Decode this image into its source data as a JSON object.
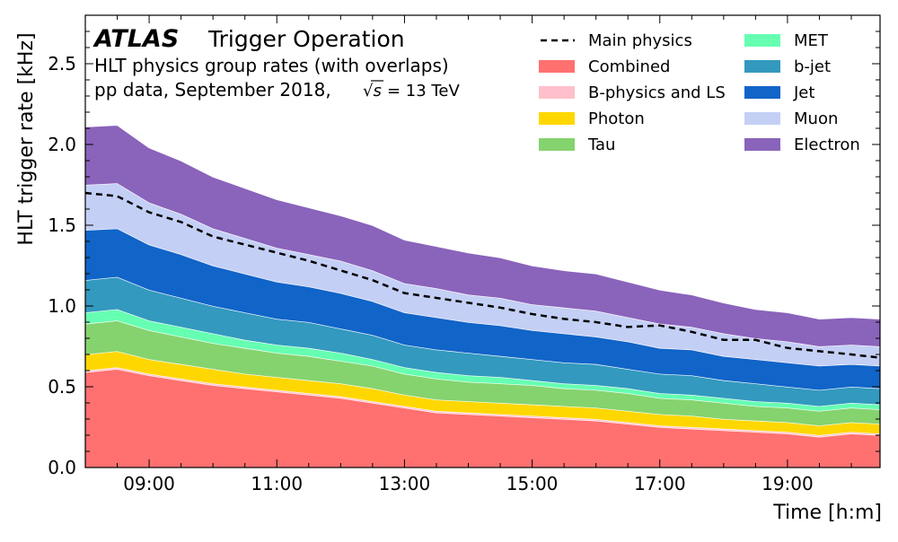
{
  "chart_data": {
    "type": "area",
    "stacked": true,
    "experiment": "ATLAS",
    "title": "Trigger Operation",
    "subtitle_line1": "HLT physics group rates (with overlaps)",
    "subtitle_line2_prefix": "pp data, September 2018,",
    "subtitle_line2_energy": "= 13 TeV",
    "xlabel": "Time [h:m]",
    "ylabel": "HLT trigger rate [kHz]",
    "ylim": [
      0,
      2.8
    ],
    "xlim": [
      "08:00",
      "20:27"
    ],
    "yticks": [
      "0.0",
      "0.5",
      "1.0",
      "1.5",
      "2.0",
      "2.5"
    ],
    "xticks": [
      "09:00",
      "11:00",
      "13:00",
      "15:00",
      "17:00",
      "19:00"
    ],
    "x_hours": [
      8.0,
      8.5,
      9.0,
      9.5,
      10.0,
      10.5,
      11.0,
      11.5,
      12.0,
      12.5,
      13.0,
      13.5,
      14.0,
      14.5,
      15.0,
      15.5,
      16.0,
      16.5,
      17.0,
      17.5,
      18.0,
      18.5,
      19.0,
      19.5,
      20.0,
      20.45
    ],
    "series": [
      {
        "name": "Combined",
        "color": "#ff7070",
        "values": [
          0.59,
          0.61,
          0.57,
          0.54,
          0.51,
          0.49,
          0.47,
          0.45,
          0.43,
          0.4,
          0.37,
          0.34,
          0.33,
          0.32,
          0.31,
          0.3,
          0.29,
          0.27,
          0.25,
          0.24,
          0.23,
          0.22,
          0.21,
          0.19,
          0.21,
          0.2
        ]
      },
      {
        "name": "B-physics and LS",
        "color": "#ffc0cb",
        "values": [
          0.01,
          0.01,
          0.01,
          0.01,
          0.01,
          0.01,
          0.01,
          0.01,
          0.01,
          0.01,
          0.01,
          0.01,
          0.01,
          0.01,
          0.01,
          0.01,
          0.01,
          0.01,
          0.01,
          0.01,
          0.01,
          0.01,
          0.01,
          0.01,
          0.01,
          0.01
        ]
      },
      {
        "name": "Photon",
        "color": "#ffd700",
        "values": [
          0.1,
          0.1,
          0.09,
          0.09,
          0.09,
          0.08,
          0.08,
          0.08,
          0.08,
          0.08,
          0.07,
          0.07,
          0.07,
          0.07,
          0.07,
          0.07,
          0.07,
          0.07,
          0.07,
          0.07,
          0.06,
          0.06,
          0.06,
          0.06,
          0.06,
          0.06
        ]
      },
      {
        "name": "Tau",
        "color": "#85d36e",
        "values": [
          0.19,
          0.19,
          0.18,
          0.17,
          0.16,
          0.16,
          0.15,
          0.15,
          0.14,
          0.14,
          0.13,
          0.13,
          0.12,
          0.12,
          0.12,
          0.11,
          0.11,
          0.11,
          0.1,
          0.1,
          0.1,
          0.09,
          0.09,
          0.09,
          0.09,
          0.09
        ]
      },
      {
        "name": "MET",
        "color": "#66ffb2",
        "values": [
          0.07,
          0.07,
          0.06,
          0.06,
          0.06,
          0.05,
          0.05,
          0.05,
          0.05,
          0.04,
          0.04,
          0.04,
          0.04,
          0.04,
          0.03,
          0.03,
          0.03,
          0.03,
          0.03,
          0.03,
          0.03,
          0.03,
          0.03,
          0.03,
          0.03,
          0.03
        ]
      },
      {
        "name": "b-jet",
        "color": "#3399bf",
        "values": [
          0.2,
          0.2,
          0.19,
          0.18,
          0.17,
          0.17,
          0.16,
          0.16,
          0.15,
          0.15,
          0.14,
          0.14,
          0.14,
          0.13,
          0.13,
          0.13,
          0.13,
          0.12,
          0.12,
          0.12,
          0.11,
          0.11,
          0.1,
          0.1,
          0.1,
          0.1
        ]
      },
      {
        "name": "Jet",
        "color": "#1164c8",
        "values": [
          0.31,
          0.3,
          0.28,
          0.27,
          0.25,
          0.24,
          0.23,
          0.22,
          0.22,
          0.21,
          0.2,
          0.2,
          0.19,
          0.19,
          0.18,
          0.18,
          0.17,
          0.17,
          0.16,
          0.16,
          0.15,
          0.15,
          0.15,
          0.15,
          0.14,
          0.14
        ]
      },
      {
        "name": "Muon",
        "color": "#c4cff5",
        "values": [
          0.28,
          0.28,
          0.26,
          0.25,
          0.23,
          0.22,
          0.21,
          0.2,
          0.2,
          0.19,
          0.18,
          0.18,
          0.17,
          0.17,
          0.16,
          0.16,
          0.16,
          0.15,
          0.15,
          0.14,
          0.14,
          0.13,
          0.13,
          0.12,
          0.12,
          0.12
        ]
      },
      {
        "name": "Electron",
        "color": "#8a63bb",
        "values": [
          0.36,
          0.36,
          0.34,
          0.33,
          0.32,
          0.31,
          0.3,
          0.29,
          0.28,
          0.28,
          0.27,
          0.26,
          0.26,
          0.25,
          0.24,
          0.23,
          0.23,
          0.22,
          0.21,
          0.2,
          0.19,
          0.18,
          0.18,
          0.17,
          0.17,
          0.17
        ]
      }
    ],
    "main_physics": {
      "name": "Main physics",
      "style": "dashed",
      "color": "#000000",
      "values": [
        1.7,
        1.68,
        1.58,
        1.52,
        1.43,
        1.38,
        1.33,
        1.28,
        1.22,
        1.16,
        1.08,
        1.05,
        1.02,
        0.99,
        0.95,
        0.92,
        0.9,
        0.87,
        0.88,
        0.84,
        0.79,
        0.79,
        0.74,
        0.72,
        0.7,
        0.68
      ]
    },
    "legend": {
      "position": "top-right",
      "columns": 2,
      "order": [
        "Main physics",
        "Combined",
        "B-physics and LS",
        "Photon",
        "Tau",
        "MET",
        "b-jet",
        "Jet",
        "Muon",
        "Electron"
      ]
    },
    "grid": false
  }
}
